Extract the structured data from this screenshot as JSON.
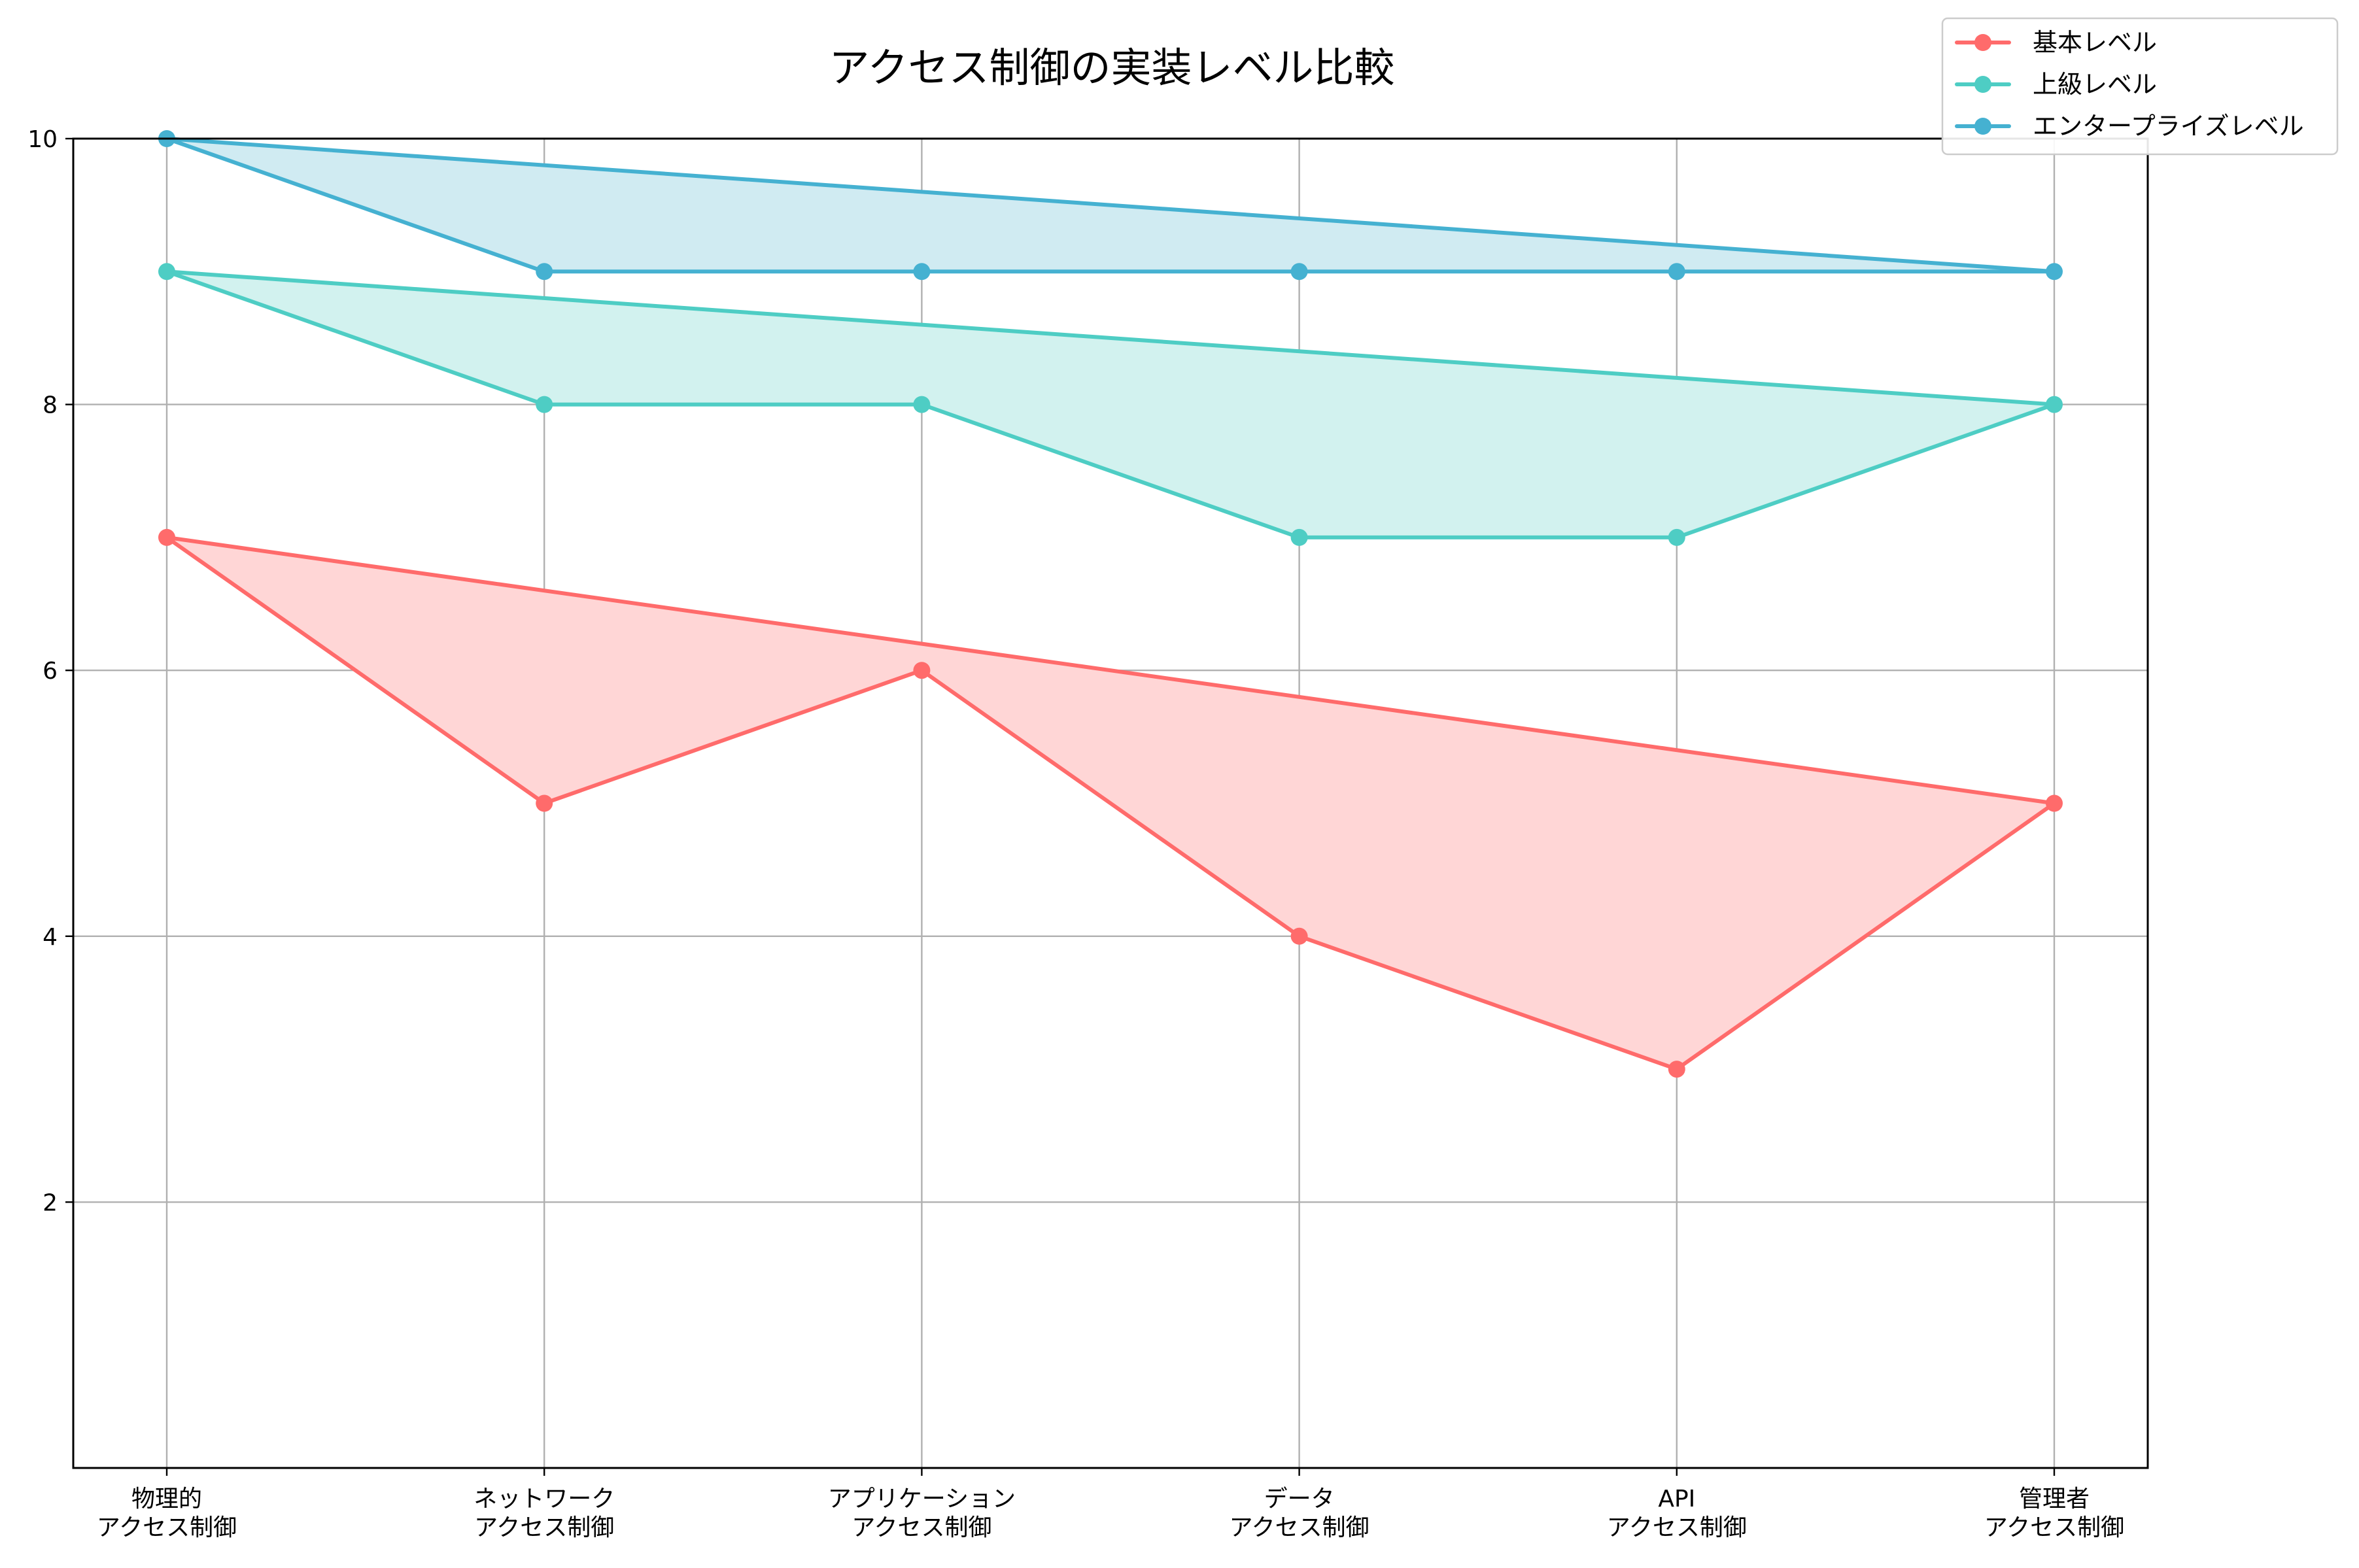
{
  "chart_data": {
    "type": "line",
    "title": "アクセス制御の実装レベル比較",
    "xlabel": "",
    "ylabel": "",
    "categories": [
      [
        "物理的",
        "アクセス制御"
      ],
      [
        "ネットワーク",
        "アクセス制御"
      ],
      [
        "アプリケーション",
        "アクセス制御"
      ],
      [
        "データ",
        "アクセス制御"
      ],
      [
        "API",
        "アクセス制御"
      ],
      [
        "管理者",
        "アクセス制御"
      ]
    ],
    "ylim": [
      0,
      10
    ],
    "yticks": [
      "2",
      "4",
      "6",
      "8",
      "10"
    ],
    "grid": true,
    "legend_position": "top-right",
    "fill_between_first_and_last": true,
    "series": [
      {
        "name": "基本レベル",
        "color": "#FF6B6B",
        "fill": "#FFD6D6",
        "values": [
          7,
          5,
          6,
          4,
          3,
          5
        ]
      },
      {
        "name": "上級レベル",
        "color": "#4ECDC4",
        "fill": "#D2F2EF",
        "values": [
          9,
          8,
          8,
          7,
          7,
          8
        ]
      },
      {
        "name": "エンタープライズレベル",
        "color": "#45B1D1",
        "fill": "#D0EBF2",
        "values": [
          10,
          9,
          9,
          9,
          9,
          9
        ]
      }
    ]
  }
}
